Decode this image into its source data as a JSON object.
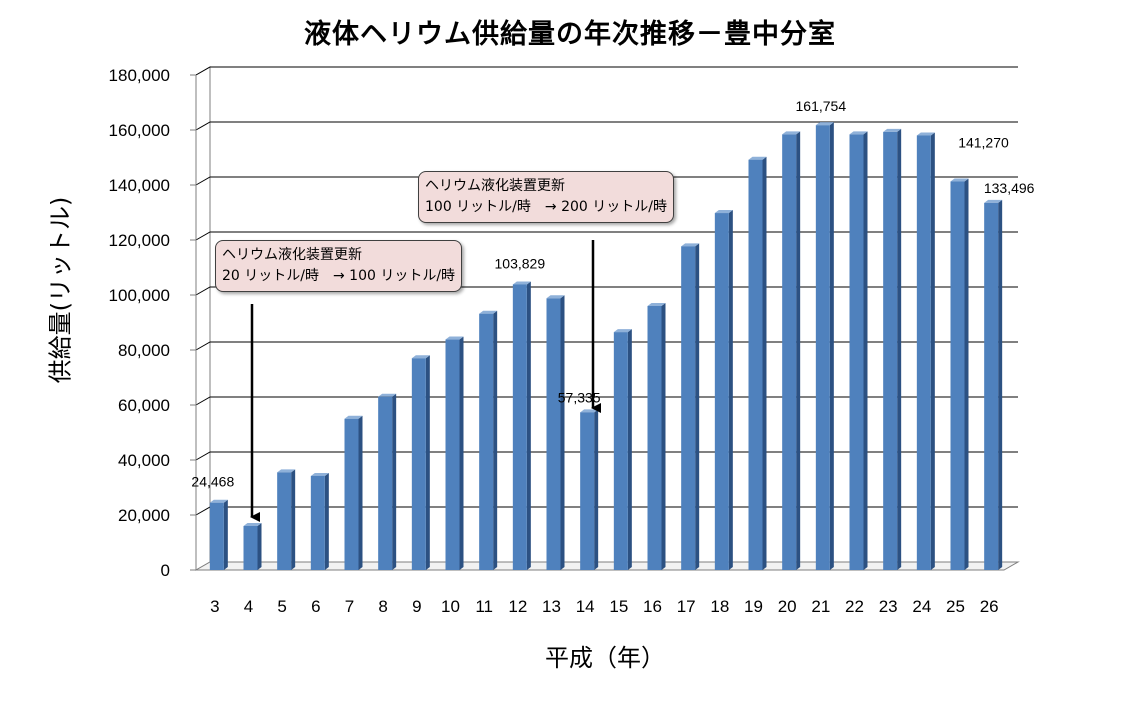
{
  "chart_data": {
    "type": "bar",
    "title": "液体ヘリウム供給量の年次推移－豊中分室",
    "xlabel": "平成（年）",
    "ylabel": "供給量(リットル)",
    "ylim": [
      0,
      180000
    ],
    "yticks": [
      "0",
      "20,000",
      "40,000",
      "60,000",
      "80,000",
      "100,000",
      "120,000",
      "140,000",
      "160,000",
      "180,000"
    ],
    "grid": true,
    "categories": [
      "3",
      "4",
      "5",
      "6",
      "7",
      "8",
      "9",
      "10",
      "11",
      "12",
      "13",
      "14",
      "15",
      "16",
      "17",
      "18",
      "19",
      "20",
      "21",
      "22",
      "23",
      "24",
      "25",
      "26"
    ],
    "values": [
      24468,
      16000,
      35500,
      34200,
      55000,
      63000,
      77000,
      83800,
      93200,
      103829,
      98800,
      57335,
      86500,
      96000,
      117700,
      129800,
      149200,
      158400,
      161754,
      158400,
      159300,
      158000,
      141270,
      133496
    ],
    "data_labels": [
      {
        "category": "3",
        "text": "24,468"
      },
      {
        "category": "12",
        "text": "103,829"
      },
      {
        "category": "14",
        "text": "57,335"
      },
      {
        "category": "21",
        "text": "161,754"
      },
      {
        "category": "25",
        "text": "141,270"
      },
      {
        "category": "26",
        "text": "133,496"
      }
    ],
    "bar_color": "#4f81bd",
    "annotations": [
      {
        "line1": "ヘリウム液化装置更新",
        "line2": "20 リットル/時　→ 100 リットル/時",
        "target_category": "4"
      },
      {
        "line1": "ヘリウム液化装置更新",
        "line2": "100 リットル/時　→ 200 リットル/時",
        "target_category": "14"
      }
    ]
  }
}
